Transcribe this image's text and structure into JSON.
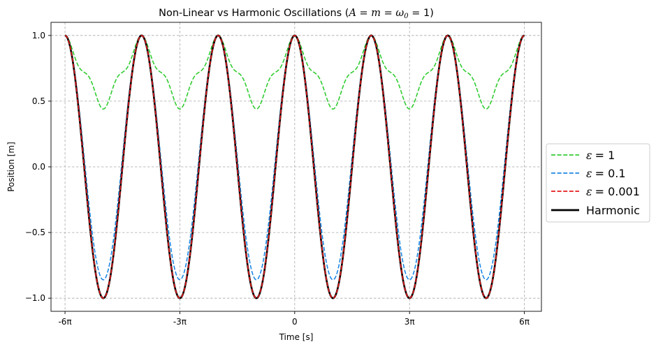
{
  "chart_data": {
    "type": "line",
    "title_parts": {
      "prefix": "Non-Linear vs Harmonic Oscillations (",
      "formula": "A = m = ω",
      "subscript": "0",
      "suffix": " = 1)"
    },
    "xlabel": "Time [s]",
    "ylabel": "Position [m]",
    "xlim": [
      -20.0,
      20.25
    ],
    "ylim": [
      -1.1,
      1.1
    ],
    "grid": true,
    "legend_placement": "right, outside plot",
    "xticks": [
      {
        "value": -18.8496,
        "label": "-6π"
      },
      {
        "value": -9.4248,
        "label": "-3π"
      },
      {
        "value": 0,
        "label": "0"
      },
      {
        "value": 9.4248,
        "label": "3π"
      },
      {
        "value": 18.8496,
        "label": "6π"
      }
    ],
    "yticks": [
      {
        "value": -1.0,
        "label": "−1.0"
      },
      {
        "value": -0.5,
        "label": "−0.5"
      },
      {
        "value": 0.0,
        "label": "0.0"
      },
      {
        "value": 0.5,
        "label": "0.5"
      },
      {
        "value": 1.0,
        "label": "1.0"
      }
    ],
    "x_range": [
      -18.8496,
      18.8496
    ],
    "series": [
      {
        "name": "ε = 1",
        "eps_symbol": "ε",
        "eps_value": "= 1",
        "color": "#33cc33",
        "style": "dashed",
        "period": 6.2832,
        "min": 0.44,
        "harmonic_mix": 0.9
      },
      {
        "name": "ε = 0.1",
        "eps_symbol": "ε",
        "eps_value": "= 0.1",
        "color": "#1e88e5",
        "style": "dashed",
        "period": 6.2832,
        "min": -0.86,
        "harmonic_mix": 0.0
      },
      {
        "name": "ε = 0.001",
        "eps_symbol": "ε",
        "eps_value": "= 0.001",
        "color": "#e41a1c",
        "style": "dashed",
        "period": 6.2832,
        "min": -1.0,
        "harmonic_mix": 0.0
      },
      {
        "name": "Harmonic",
        "color": "#000000",
        "style": "solid",
        "period": 6.2832,
        "min": -1.0,
        "harmonic_mix": 0.0
      }
    ]
  }
}
